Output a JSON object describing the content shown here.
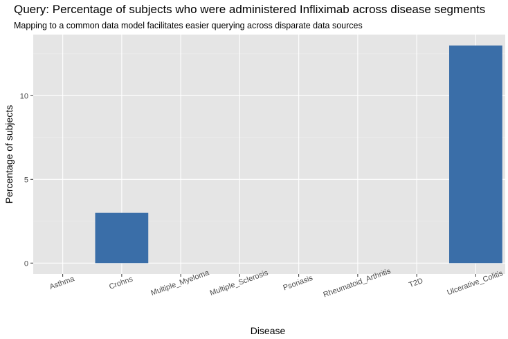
{
  "chart_data": {
    "type": "bar",
    "title": "Query: Percentage of subjects who were administered Infliximab across disease segments",
    "subtitle": "Mapping to a common data model facilitates easier querying across disparate data sources",
    "xlabel": "Disease",
    "ylabel": "Percentage of subjects",
    "categories": [
      "Asthma",
      "Crohns",
      "Multiple_Myeloma",
      "Multiple_Sclerosis",
      "Psoriasis",
      "Rheumatoid_Arthritis",
      "T2D",
      "Ulcerative_Colitis"
    ],
    "values": [
      0,
      3,
      0,
      0,
      0,
      0,
      0,
      13
    ],
    "ylim": [
      -0.65,
      13.65
    ],
    "yticks": [
      0,
      5,
      10
    ],
    "grid": true,
    "legend": "none",
    "colors": {
      "bar": "#3a6ea8",
      "panel": "#e5e5e5",
      "grid_major": "#ffffff",
      "grid_minor": "#f0f0f0"
    }
  }
}
